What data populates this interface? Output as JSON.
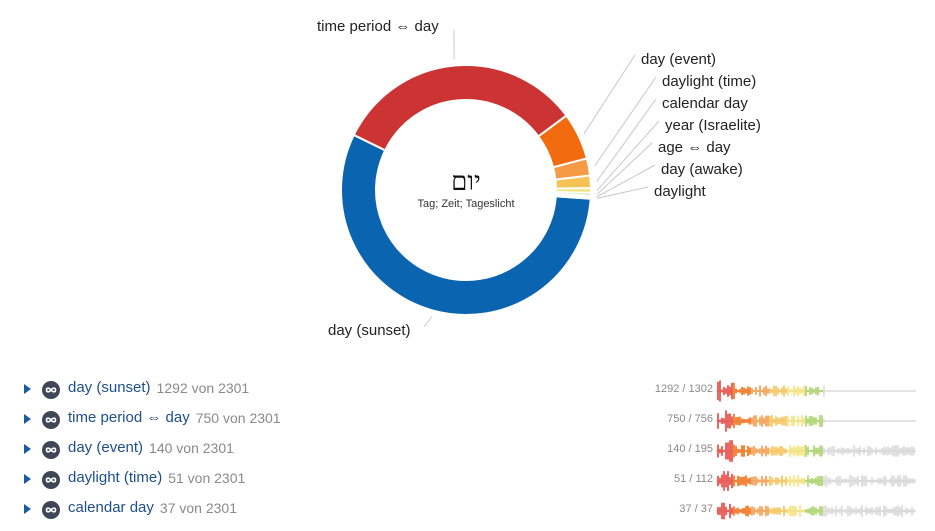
{
  "chart_data": {
    "type": "pie",
    "donut": true,
    "center_title": "יום",
    "center_subtitle": "Tag; Zeit; Tageslicht",
    "slices": [
      {
        "label": "day (sunset)",
        "value": 1292,
        "color": "#0b64b0"
      },
      {
        "label": "time period ⇔ day",
        "value": 750,
        "color": "#cc3333"
      },
      {
        "label": "day (event)",
        "value": 140,
        "color": "#f26b0f"
      },
      {
        "label": "daylight (time)",
        "value": 51,
        "color": "#f59a45"
      },
      {
        "label": "calendar day",
        "value": 37,
        "color": "#f7c255"
      },
      {
        "label": "year (Israelite)",
        "value": 14,
        "color": "#f3e27a"
      },
      {
        "label": "age ⇔ day",
        "value": 8,
        "color": "#a9d268"
      },
      {
        "label": "day (awake)",
        "value": 5,
        "color": "#4bb18a"
      },
      {
        "label": "daylight",
        "value": 4,
        "color": "#3aa0c8"
      }
    ]
  },
  "list": {
    "of_word": "von",
    "total": "2301",
    "items": [
      {
        "label": "day (sunset)",
        "count": "1292",
        "ratio": "1292 / 1302"
      },
      {
        "label": "time period ⇔ day",
        "count": "750",
        "ratio": "750 / 756"
      },
      {
        "label": "day (event)",
        "count": "140",
        "ratio": "140 / 195"
      },
      {
        "label": "daylight (time)",
        "count": "51",
        "ratio": "51 / 112"
      },
      {
        "label": "calendar day",
        "count": "37",
        "ratio": "37 / 37"
      }
    ]
  },
  "icons": {
    "expand": "triangle-right-icon",
    "sense": "infinity-circle-icon"
  }
}
